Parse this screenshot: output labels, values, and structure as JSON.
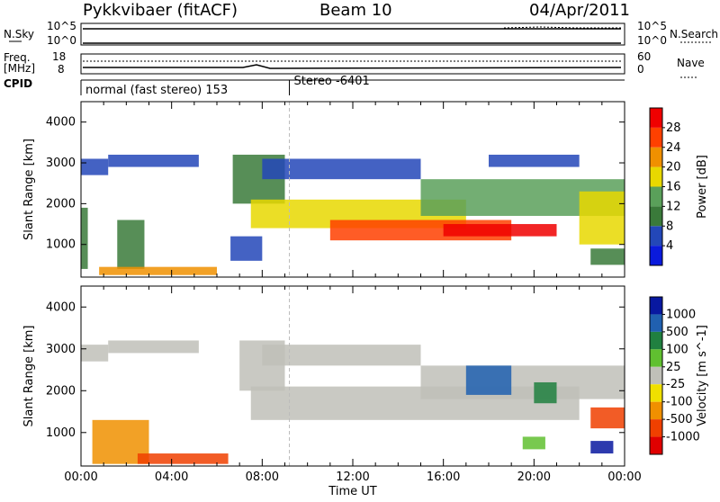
{
  "header": {
    "station": "Pykkvibaer (fitACF)",
    "beam": "Beam 10",
    "date": "04/Apr/2011"
  },
  "panel_nsky": {
    "left_label": "N.Sky",
    "right_label": "N.Search",
    "left_ticks": [
      "10^5",
      "10^0"
    ],
    "right_ticks": [
      "10^5",
      "10^0"
    ]
  },
  "panel_freq": {
    "left_label_1": "Freq.",
    "left_label_2": "[MHz]",
    "right_label": "Nave",
    "left_ticks": [
      "18",
      "8"
    ],
    "right_ticks": [
      "60",
      "0"
    ]
  },
  "cpid": {
    "label": "CPID",
    "mode_1": "normal (fast stereo) 153",
    "mode_2": "Stereo -6401",
    "mode_2_change_hour": 9.2
  },
  "colors": {
    "power_scale": [
      "#0a1adc",
      "#2347b8",
      "#3a7a3a",
      "#5aa05a",
      "#e8d800",
      "#f09000",
      "#ff4000",
      "#f00000"
    ],
    "velocity_scale": [
      "#0818a0",
      "#2060b0",
      "#208040",
      "#60c030",
      "#c0c0b8",
      "#f0e000",
      "#f09000",
      "#f04000",
      "#e00000"
    ]
  },
  "chart_data": [
    {
      "type": "heatmap",
      "name": "power",
      "ylabel": "Slant Range [km]",
      "xlabel": "",
      "x_unit": "hours UT",
      "xlim": [
        0,
        24
      ],
      "ylim": [
        200,
        4500
      ],
      "y_ticks": [
        1000,
        2000,
        3000,
        4000
      ],
      "colorbar_label": "Power [dB]",
      "colorbar_ticks": [
        4,
        8,
        12,
        16,
        20,
        24,
        28
      ],
      "colorbar_range": [
        0,
        32
      ],
      "bands": [
        {
          "x": [
            0.0,
            1.2
          ],
          "y_from": 2700,
          "y_to": 3100,
          "value": 6
        },
        {
          "x": [
            1.2,
            5.2
          ],
          "y_from": 2900,
          "y_to": 3200,
          "value": 6
        },
        {
          "x": [
            0.0,
            0.3
          ],
          "y_from": 400,
          "y_to": 1900,
          "value": 8
        },
        {
          "x": [
            1.6,
            2.8
          ],
          "y_from": 400,
          "y_to": 1600,
          "value": 10
        },
        {
          "x": [
            0.8,
            6.0
          ],
          "y_from": 250,
          "y_to": 450,
          "value": 20
        },
        {
          "x": [
            6.7,
            9.0
          ],
          "y_from": 2000,
          "y_to": 3200,
          "value": 10
        },
        {
          "x": [
            7.5,
            17.0
          ],
          "y_from": 1400,
          "y_to": 2100,
          "value": 18
        },
        {
          "x": [
            11.0,
            19.0
          ],
          "y_from": 1100,
          "y_to": 1600,
          "value": 24
        },
        {
          "x": [
            16.0,
            21.0
          ],
          "y_from": 1200,
          "y_to": 1500,
          "value": 28
        },
        {
          "x": [
            8.0,
            15.0
          ],
          "y_from": 2600,
          "y_to": 3100,
          "value": 7
        },
        {
          "x": [
            15.0,
            24.0
          ],
          "y_from": 1700,
          "y_to": 2600,
          "value": 15
        },
        {
          "x": [
            18.0,
            22.0
          ],
          "y_from": 2900,
          "y_to": 3200,
          "value": 6
        },
        {
          "x": [
            22.0,
            24.0
          ],
          "y_from": 1000,
          "y_to": 2300,
          "value": 16
        },
        {
          "x": [
            22.5,
            24.0
          ],
          "y_from": 500,
          "y_to": 900,
          "value": 10
        },
        {
          "x": [
            6.6,
            8.0
          ],
          "y_from": 600,
          "y_to": 1200,
          "value": 6
        }
      ]
    },
    {
      "type": "heatmap",
      "name": "velocity",
      "ylabel": "Slant Range [km]",
      "xlabel": "Time UT",
      "x_unit": "hours UT",
      "xlim": [
        0,
        24
      ],
      "ylim": [
        200,
        4500
      ],
      "y_ticks": [
        1000,
        2000,
        3000,
        4000
      ],
      "x_tick_labels": [
        "00:00",
        "04:00",
        "08:00",
        "12:00",
        "16:00",
        "20:00",
        "00:00"
      ],
      "colorbar_label": "Velocity [m s^-1]",
      "colorbar_ticks": [
        "1000",
        "500",
        "100",
        "25",
        "-25",
        "-100",
        "-500",
        "-1000"
      ],
      "bands": [
        {
          "x": [
            0.0,
            1.2
          ],
          "y_from": 2700,
          "y_to": 3100,
          "value": 0
        },
        {
          "x": [
            1.2,
            5.2
          ],
          "y_from": 2900,
          "y_to": 3200,
          "value": 0
        },
        {
          "x": [
            7.0,
            9.0
          ],
          "y_from": 2000,
          "y_to": 3200,
          "value": 0
        },
        {
          "x": [
            7.5,
            22.0
          ],
          "y_from": 1300,
          "y_to": 2100,
          "value": 0
        },
        {
          "x": [
            8.0,
            15.0
          ],
          "y_from": 2600,
          "y_to": 3100,
          "value": 0
        },
        {
          "x": [
            15.0,
            24.0
          ],
          "y_from": 1800,
          "y_to": 2600,
          "value": 0
        },
        {
          "x": [
            0.5,
            3.0
          ],
          "y_from": 250,
          "y_to": 1300,
          "value": -150
        },
        {
          "x": [
            2.5,
            6.5
          ],
          "y_from": 250,
          "y_to": 500,
          "value": -300
        },
        {
          "x": [
            17.0,
            19.0
          ],
          "y_from": 1900,
          "y_to": 2600,
          "value": 600
        },
        {
          "x": [
            20.0,
            21.0
          ],
          "y_from": 1700,
          "y_to": 2200,
          "value": 200
        },
        {
          "x": [
            22.5,
            24.0
          ],
          "y_from": 1100,
          "y_to": 1600,
          "value": -700
        },
        {
          "x": [
            19.5,
            20.5
          ],
          "y_from": 600,
          "y_to": 900,
          "value": 50
        },
        {
          "x": [
            22.5,
            23.5
          ],
          "y_from": 500,
          "y_to": 800,
          "value": 800
        }
      ]
    }
  ]
}
